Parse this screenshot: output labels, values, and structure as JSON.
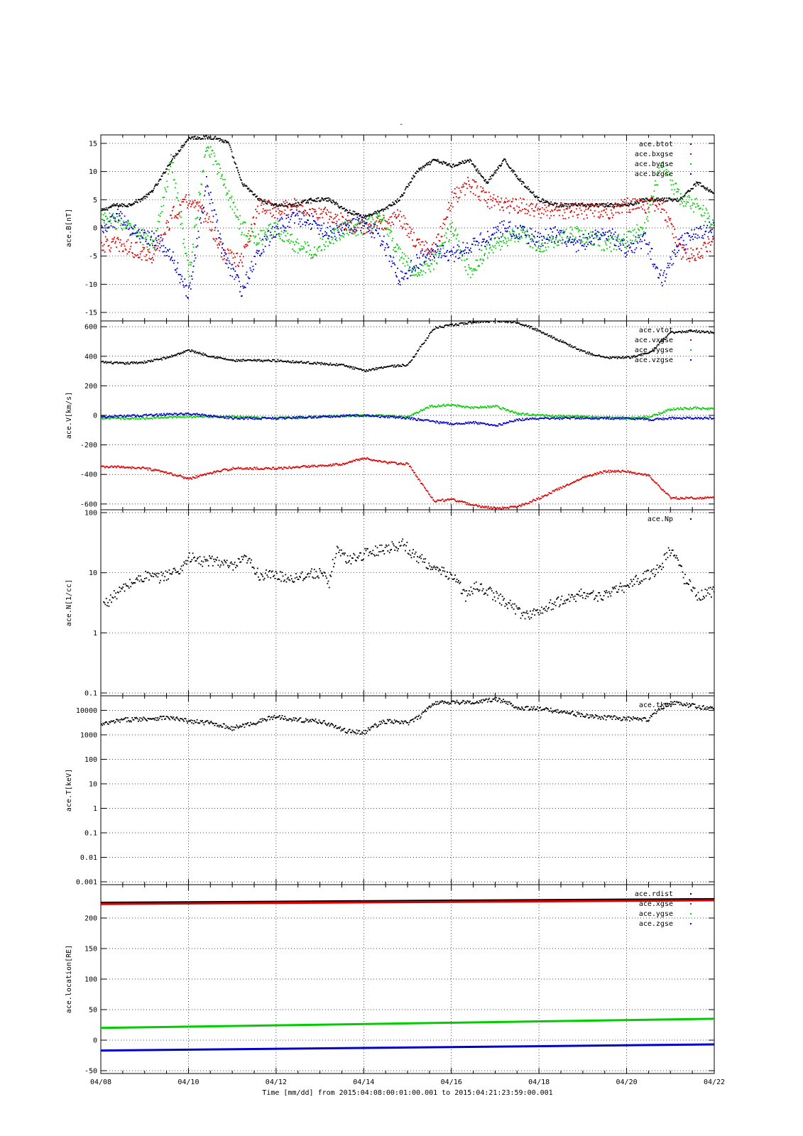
{
  "chart_data": [
    {
      "type": "scatter",
      "title": "-",
      "ylabel": "ace.B[nT]",
      "ylim": [
        -16,
        16
      ],
      "y_ticks": [
        15,
        10,
        5,
        0,
        -5,
        -10,
        -15
      ],
      "series": [
        {
          "name": "ace.btot",
          "color": "#000000",
          "x": [
            0,
            0.3,
            0.6,
            0.9,
            1.1,
            1.3,
            1.6,
            1.8,
            2.0,
            2.3,
            2.6,
            2.9,
            3.2,
            3.6,
            4.0,
            4.4,
            4.8,
            5.2,
            5.6,
            6.0,
            6.4,
            6.8,
            7.2,
            7.6,
            8.0,
            8.4,
            8.8,
            9.2,
            9.6,
            10.0,
            10.4,
            10.8,
            11.2,
            11.6,
            12.0,
            12.4,
            12.8,
            13.2,
            13.6,
            14.0
          ],
          "y": [
            3,
            4,
            4,
            5,
            6,
            8,
            12,
            14,
            16,
            16,
            16,
            15,
            8,
            5,
            4,
            4,
            5,
            5,
            3,
            2,
            3,
            5,
            10,
            12,
            11,
            12,
            8,
            12,
            8,
            5,
            4,
            4,
            4,
            4,
            4,
            5,
            5,
            5,
            8,
            6
          ]
        },
        {
          "name": "ace.bxgse",
          "color": "#dd0000",
          "x": [
            0,
            0.4,
            0.8,
            1.2,
            1.6,
            2.0,
            2.4,
            2.8,
            3.2,
            3.6,
            4.0,
            4.4,
            4.8,
            5.2,
            5.6,
            6.0,
            6.4,
            6.8,
            7.2,
            7.6,
            8.0,
            8.4,
            8.8,
            9.2,
            9.6,
            10.0,
            10.4,
            10.8,
            11.2,
            11.6,
            12.0,
            12.4,
            12.8,
            13.2,
            13.6,
            14.0
          ],
          "y": [
            -3,
            -3,
            -4,
            -5,
            2,
            5,
            2,
            -5,
            -6,
            4,
            3,
            4,
            3,
            2,
            1,
            0,
            1,
            2,
            -3,
            -4,
            5,
            8,
            5,
            4,
            4,
            3,
            3,
            3,
            3,
            3,
            4,
            4,
            4,
            -4,
            -5,
            -2
          ]
        },
        {
          "name": "ace.bygse",
          "color": "#00cc00",
          "x": [
            0,
            0.4,
            0.8,
            1.2,
            1.6,
            2.0,
            2.4,
            2.8,
            3.2,
            3.6,
            4.0,
            4.4,
            4.8,
            5.2,
            5.6,
            6.0,
            6.4,
            6.8,
            7.2,
            7.6,
            8.0,
            8.4,
            8.8,
            9.2,
            9.6,
            10.0,
            10.4,
            10.8,
            11.2,
            11.6,
            12.0,
            12.4,
            12.8,
            13.2,
            13.6,
            14.0
          ],
          "y": [
            2,
            1,
            -1,
            -3,
            12,
            -8,
            15,
            8,
            0,
            -2,
            0,
            -3,
            -4,
            -2,
            0,
            0,
            2,
            -5,
            -8,
            -6,
            0,
            -8,
            -4,
            -2,
            -1,
            -3,
            -2,
            -1,
            -2,
            -3,
            -2,
            0,
            12,
            5,
            4,
            0
          ]
        },
        {
          "name": "ace.bzgse",
          "color": "#0000cc",
          "x": [
            0,
            0.4,
            0.8,
            1.2,
            1.6,
            2.0,
            2.4,
            2.8,
            3.2,
            3.6,
            4.0,
            4.4,
            4.8,
            5.2,
            5.6,
            6.0,
            6.4,
            6.8,
            7.2,
            7.6,
            8.0,
            8.4,
            8.8,
            9.2,
            9.6,
            10.0,
            10.4,
            10.8,
            11.2,
            11.6,
            12.0,
            12.4,
            12.8,
            13.2,
            13.6,
            14.0
          ],
          "y": [
            0,
            2,
            -1,
            -2,
            -5,
            -12,
            8,
            -5,
            -11,
            -4,
            0,
            2,
            1,
            -1,
            0,
            1,
            -2,
            -9,
            -6,
            -4,
            -5,
            -3,
            -2,
            0,
            -1,
            -2,
            -1,
            -3,
            -2,
            -1,
            -4,
            -2,
            -9,
            -3,
            -1,
            0
          ]
        }
      ]
    },
    {
      "type": "scatter",
      "ylabel": "ace.V[km/s]",
      "ylim": [
        -620,
        620
      ],
      "y_ticks": [
        600,
        400,
        200,
        0,
        -200,
        -400,
        -600
      ],
      "series": [
        {
          "name": "ace.vtot",
          "color": "#000000",
          "x": [
            0,
            0.5,
            1.0,
            1.5,
            2.0,
            2.5,
            3.0,
            3.5,
            4.0,
            4.5,
            5.0,
            5.5,
            6.0,
            6.5,
            7.0,
            7.3,
            7.6,
            8.0,
            8.5,
            9.0,
            9.5,
            10.0,
            10.5,
            11.0,
            11.5,
            12.0,
            12.5,
            13.0,
            13.5,
            14.0
          ],
          "y": [
            360,
            350,
            360,
            390,
            440,
            400,
            370,
            370,
            370,
            360,
            350,
            340,
            300,
            330,
            340,
            470,
            590,
            610,
            630,
            640,
            630,
            570,
            500,
            430,
            390,
            390,
            420,
            560,
            570,
            560
          ]
        },
        {
          "name": "ace.vxgse",
          "color": "#dd0000",
          "x": [
            0,
            0.5,
            1.0,
            1.5,
            2.0,
            2.5,
            3.0,
            3.5,
            4.0,
            4.5,
            5.0,
            5.5,
            6.0,
            6.5,
            7.0,
            7.3,
            7.6,
            8.0,
            8.5,
            9.0,
            9.5,
            10.0,
            10.5,
            11.0,
            11.5,
            12.0,
            12.5,
            13.0,
            13.5,
            14.0
          ],
          "y": [
            -350,
            -350,
            -360,
            -390,
            -430,
            -390,
            -360,
            -360,
            -360,
            -350,
            -340,
            -330,
            -290,
            -320,
            -330,
            -460,
            -580,
            -570,
            -610,
            -630,
            -620,
            -560,
            -490,
            -420,
            -380,
            -380,
            -410,
            -560,
            -560,
            -560
          ]
        },
        {
          "name": "ace.vygse",
          "color": "#00cc00",
          "x": [
            0,
            1,
            2,
            3,
            4,
            5,
            6,
            7,
            7.5,
            8,
            8.5,
            9,
            9.5,
            10,
            11,
            12,
            12.5,
            13,
            13.5,
            14
          ],
          "y": [
            -20,
            -20,
            -10,
            -10,
            -20,
            -10,
            0,
            -10,
            60,
            70,
            50,
            60,
            10,
            0,
            -10,
            -20,
            -10,
            40,
            50,
            40
          ]
        },
        {
          "name": "ace.vzgse",
          "color": "#0000cc",
          "x": [
            0,
            1,
            2,
            3,
            4,
            5,
            6,
            7,
            7.5,
            8,
            8.5,
            9,
            9.5,
            10,
            11,
            12,
            12.5,
            13,
            13.5,
            14
          ],
          "y": [
            -10,
            0,
            10,
            -20,
            -20,
            -10,
            0,
            -20,
            -40,
            -60,
            -50,
            -70,
            -30,
            -20,
            -20,
            -20,
            -30,
            -20,
            -20,
            -20
          ]
        }
      ]
    },
    {
      "type": "scatter",
      "ylabel": "ace.N[1/cc]",
      "y_log": true,
      "ylim": [
        0.1,
        100
      ],
      "y_ticks": [
        100,
        10,
        1,
        0.1
      ],
      "series": [
        {
          "name": "ace.Np",
          "color": "#000000",
          "x": [
            0.05,
            0.2,
            1.05,
            1.3,
            1.6,
            1.8,
            2.0,
            2.3,
            2.6,
            3.0,
            3.3,
            3.6,
            4.0,
            4.3,
            4.6,
            5.0,
            5.2,
            5.4,
            5.6,
            6.9,
            7.1,
            7.4,
            7.6,
            8.0,
            8.3,
            8.6,
            9.0,
            9.3,
            9.6,
            10.0,
            10.3,
            10.6,
            11.0,
            11.3,
            11.6,
            12.0,
            12.3,
            12.6,
            12.8,
            13.0,
            13.3,
            13.6,
            14.0
          ],
          "y": [
            3,
            3.5,
            9,
            8,
            10,
            11,
            18,
            15,
            16,
            12,
            17,
            9,
            9,
            8,
            9,
            10,
            6,
            25,
            16,
            30,
            20,
            15,
            11,
            9,
            4,
            6,
            4,
            3,
            2,
            2.2,
            3,
            3.5,
            4.5,
            4,
            4.5,
            6,
            8,
            10,
            14,
            24,
            8,
            4,
            5
          ]
        }
      ]
    },
    {
      "type": "scatter",
      "ylabel": "ace.T[keV]",
      "y_log": true,
      "ylim": [
        0.001,
        30000
      ],
      "y_ticks": [
        10000,
        1000,
        100,
        10,
        1,
        0.1,
        0.01,
        0.001
      ],
      "y_tick_labels": [
        "10000",
        "1000",
        "100",
        "10",
        "1",
        "0.1",
        "0.01",
        "0.001"
      ],
      "series": [
        {
          "name": "ace.tkev",
          "color": "#000000",
          "x": [
            0,
            0.5,
            1.0,
            1.5,
            2.0,
            2.5,
            3.0,
            3.5,
            4.0,
            4.5,
            5.0,
            5.5,
            6.0,
            6.5,
            7.0,
            7.3,
            7.6,
            8.0,
            8.5,
            9.0,
            9.5,
            10.0,
            10.5,
            11.0,
            11.5,
            12.0,
            12.5,
            13.0,
            13.5,
            14.0
          ],
          "y": [
            2500,
            4000,
            4500,
            5000,
            3500,
            3000,
            1800,
            3000,
            5500,
            4000,
            3500,
            1500,
            1200,
            3500,
            3000,
            5500,
            20000,
            22000,
            20000,
            28000,
            13000,
            11000,
            9000,
            6000,
            5000,
            4500,
            4000,
            20000,
            15000,
            11000
          ]
        }
      ]
    },
    {
      "type": "line",
      "ylabel": "ace.location[RE]",
      "ylim": [
        -50,
        250
      ],
      "y_ticks": [
        200,
        150,
        100,
        50,
        0,
        -50
      ],
      "xlabel": "Time [mm/dd]  from 2015:04:08:00:01:00.001  to  2015:04:21:23:59:00.001",
      "x_tick_labels": [
        "04/08",
        "04/10",
        "04/12",
        "04/14",
        "04/16",
        "04/18",
        "04/20",
        "04/22"
      ],
      "x_range_days": [
        0,
        14
      ],
      "series": [
        {
          "name": "ace.rdist",
          "color": "#000000",
          "x": [
            0,
            14
          ],
          "y": [
            225,
            231
          ]
        },
        {
          "name": "ace.xgse",
          "color": "#dd0000",
          "x": [
            0,
            14
          ],
          "y": [
            223,
            229
          ]
        },
        {
          "name": "ace.ygse",
          "color": "#00cc00",
          "x": [
            0,
            14
          ],
          "y": [
            20,
            35
          ]
        },
        {
          "name": "ace.zgse",
          "color": "#0000cc",
          "x": [
            0,
            14
          ],
          "y": [
            -17,
            -7
          ]
        }
      ]
    }
  ]
}
